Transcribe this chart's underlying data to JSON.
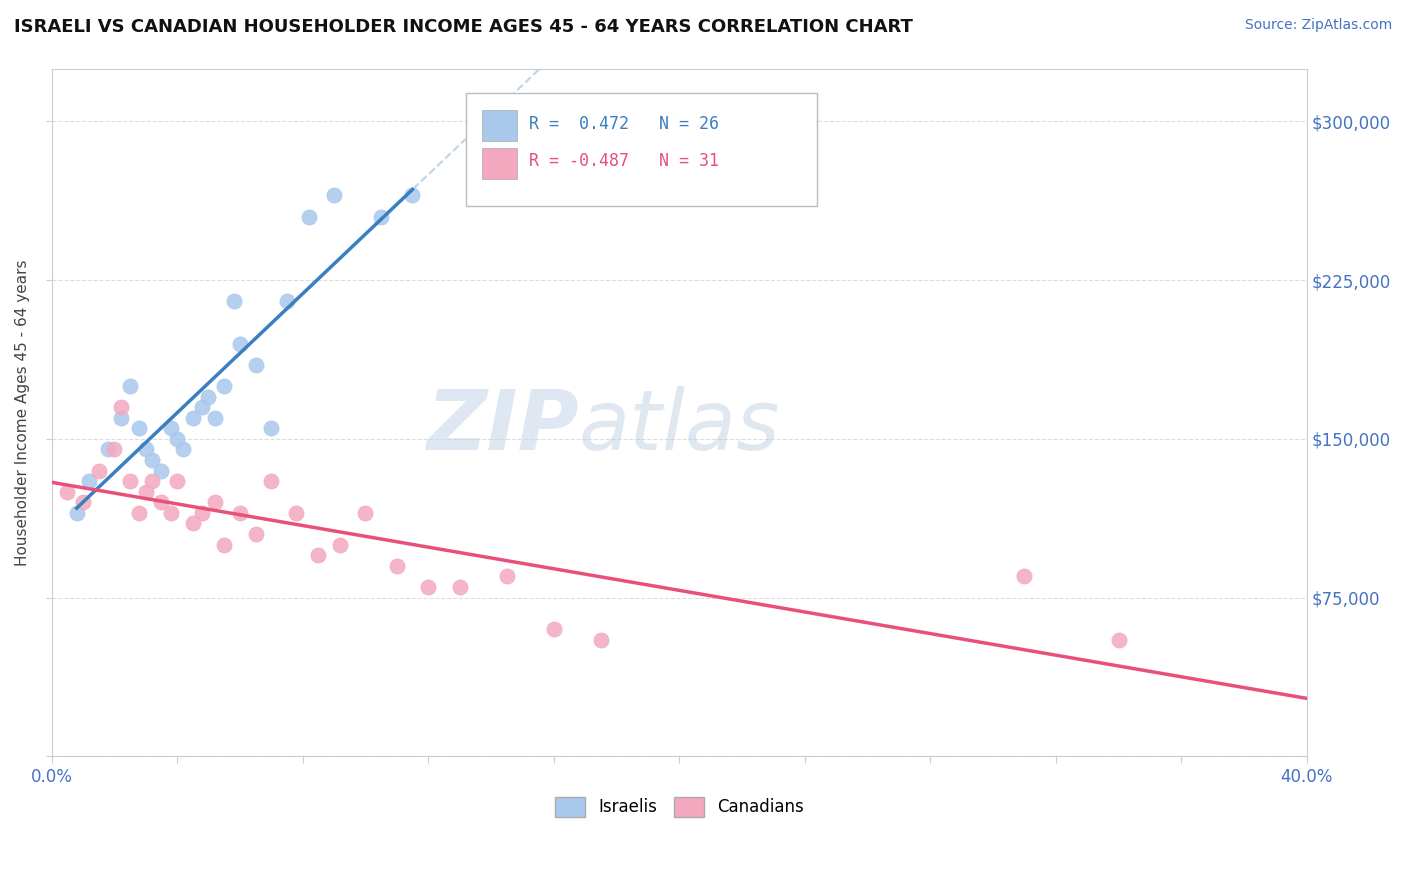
{
  "title": "ISRAELI VS CANADIAN HOUSEHOLDER INCOME AGES 45 - 64 YEARS CORRELATION CHART",
  "source_text": "Source: ZipAtlas.com",
  "ylabel": "Householder Income Ages 45 - 64 years",
  "xlim": [
    0.0,
    0.4
  ],
  "ylim": [
    0,
    325000
  ],
  "yticks": [
    0,
    75000,
    150000,
    225000,
    300000
  ],
  "right_ytick_labels": [
    "",
    "$75,000",
    "$150,000",
    "$225,000",
    "$300,000"
  ],
  "israeli_color": "#A8C8EC",
  "canadian_color": "#F4A8C0",
  "israeli_line_color": "#3A7FC1",
  "canadian_line_color": "#E8507A",
  "R_israeli": 0.472,
  "N_israeli": 26,
  "R_canadian": -0.487,
  "N_canadian": 31,
  "watermark_zip": "ZIP",
  "watermark_atlas": "atlas",
  "watermark_color_zip": "#C5D5E5",
  "watermark_color_atlas": "#B8CCE0",
  "israeli_scatter_x": [
    0.008,
    0.012,
    0.018,
    0.022,
    0.025,
    0.028,
    0.03,
    0.032,
    0.035,
    0.038,
    0.04,
    0.042,
    0.045,
    0.048,
    0.05,
    0.052,
    0.055,
    0.058,
    0.06,
    0.065,
    0.07,
    0.075,
    0.082,
    0.09,
    0.105,
    0.115
  ],
  "israeli_scatter_y": [
    115000,
    130000,
    145000,
    160000,
    175000,
    155000,
    145000,
    140000,
    135000,
    155000,
    150000,
    145000,
    160000,
    165000,
    170000,
    160000,
    175000,
    215000,
    195000,
    185000,
    155000,
    215000,
    255000,
    265000,
    255000,
    265000
  ],
  "canadian_scatter_x": [
    0.005,
    0.01,
    0.015,
    0.02,
    0.022,
    0.025,
    0.028,
    0.03,
    0.032,
    0.035,
    0.038,
    0.04,
    0.045,
    0.048,
    0.052,
    0.055,
    0.06,
    0.065,
    0.07,
    0.078,
    0.085,
    0.092,
    0.1,
    0.11,
    0.12,
    0.13,
    0.145,
    0.16,
    0.175,
    0.31,
    0.34
  ],
  "canadian_scatter_y": [
    125000,
    120000,
    135000,
    145000,
    165000,
    130000,
    115000,
    125000,
    130000,
    120000,
    115000,
    130000,
    110000,
    115000,
    120000,
    100000,
    115000,
    105000,
    130000,
    115000,
    95000,
    100000,
    115000,
    90000,
    80000,
    80000,
    85000,
    60000,
    55000,
    85000,
    55000
  ]
}
